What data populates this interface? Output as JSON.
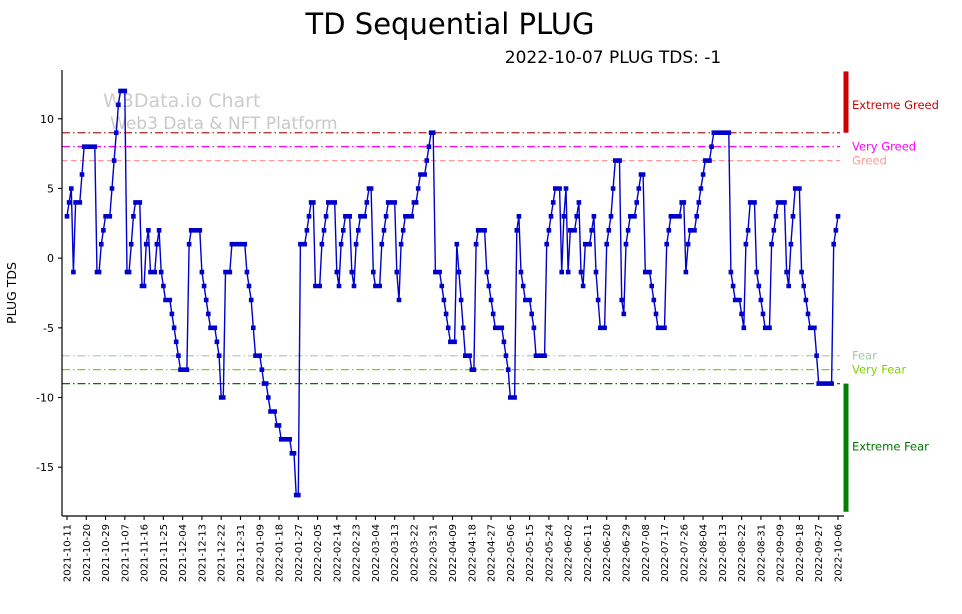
{
  "title": "TD Sequential PLUG",
  "subtitle": "2022-10-07 PLUG TDS: -1",
  "watermark": {
    "line1": "W3Data.io Chart",
    "line2": "Web3 Data & NFT Platform"
  },
  "chart_data": {
    "type": "line",
    "title": "TD Sequential PLUG",
    "subtitle": "2022-10-07 PLUG TDS: -1",
    "xlabel": "",
    "ylabel": "PLUG TDS",
    "ylim": [
      -18.5,
      13.5
    ],
    "yticks": [
      -15,
      -10,
      -5,
      0,
      5,
      10
    ],
    "grid": false,
    "legend": null,
    "xtick_interval_days": 9,
    "xtick_labels": [
      "2021-10-11",
      "2021-10-20",
      "2021-10-29",
      "2021-11-07",
      "2021-11-16",
      "2021-11-25",
      "2021-12-04",
      "2021-12-13",
      "2021-12-22",
      "2021-12-31",
      "2022-01-09",
      "2022-01-18",
      "2022-01-27",
      "2022-02-05",
      "2022-02-14",
      "2022-02-23",
      "2022-03-04",
      "2022-03-13",
      "2022-03-22",
      "2022-03-31",
      "2022-04-09",
      "2022-04-18",
      "2022-04-27",
      "2022-05-06",
      "2022-05-15",
      "2022-05-24",
      "2022-06-02",
      "2022-06-11",
      "2022-06-20",
      "2022-06-29",
      "2022-07-08",
      "2022-07-17",
      "2022-07-26",
      "2022-08-04",
      "2022-08-13",
      "2022-08-22",
      "2022-08-31",
      "2022-09-09",
      "2022-09-18",
      "2022-09-27",
      "2022-10-06"
    ],
    "series": [
      {
        "name": "PLUG TDS",
        "color": "#0000cd",
        "marker": "square",
        "start_date": "2021-10-11",
        "values": [
          3,
          4,
          5,
          -1,
          4,
          4,
          4,
          6,
          8,
          8,
          8,
          8,
          8,
          8,
          -1,
          -1,
          1,
          2,
          3,
          3,
          3,
          5,
          7,
          9,
          11,
          12,
          12,
          12,
          -1,
          -1,
          1,
          3,
          4,
          4,
          4,
          -2,
          -2,
          1,
          2,
          -1,
          -1,
          -1,
          1,
          2,
          -1,
          -2,
          -3,
          -3,
          -3,
          -4,
          -5,
          -6,
          -7,
          -8,
          -8,
          -8,
          -8,
          1,
          2,
          2,
          2,
          2,
          2,
          -1,
          -2,
          -3,
          -4,
          -5,
          -5,
          -5,
          -6,
          -7,
          -10,
          -10,
          -1,
          -1,
          -1,
          1,
          1,
          1,
          1,
          1,
          1,
          1,
          -1,
          -2,
          -3,
          -5,
          -7,
          -7,
          -7,
          -8,
          -9,
          -9,
          -10,
          -11,
          -11,
          -11,
          -12,
          -12,
          -13,
          -13,
          -13,
          -13,
          -13,
          -14,
          -14,
          -17,
          -17,
          1,
          1,
          1,
          2,
          3,
          4,
          4,
          -2,
          -2,
          -2,
          1,
          2,
          3,
          4,
          4,
          4,
          4,
          -1,
          -2,
          1,
          2,
          3,
          3,
          3,
          -1,
          -2,
          1,
          2,
          3,
          3,
          3,
          4,
          5,
          5,
          -1,
          -2,
          -2,
          -2,
          1,
          2,
          3,
          4,
          4,
          4,
          4,
          -1,
          -3,
          1,
          2,
          3,
          3,
          3,
          3,
          4,
          4,
          5,
          6,
          6,
          6,
          7,
          8,
          9,
          9,
          -1,
          -1,
          -1,
          -2,
          -3,
          -4,
          -5,
          -6,
          -6,
          -6,
          1,
          -1,
          -3,
          -5,
          -7,
          -7,
          -7,
          -8,
          -8,
          1,
          2,
          2,
          2,
          2,
          -1,
          -2,
          -3,
          -4,
          -5,
          -5,
          -5,
          -5,
          -6,
          -7,
          -8,
          -10,
          -10,
          -10,
          2,
          3,
          -1,
          -2,
          -3,
          -3,
          -3,
          -4,
          -5,
          -7,
          -7,
          -7,
          -7,
          -7,
          1,
          2,
          3,
          4,
          5,
          5,
          5,
          -1,
          3,
          5,
          -1,
          2,
          2,
          2,
          3,
          4,
          -1,
          -2,
          1,
          1,
          1,
          2,
          3,
          -1,
          -3,
          -5,
          -5,
          -5,
          1,
          2,
          3,
          5,
          7,
          7,
          7,
          -3,
          -4,
          1,
          2,
          3,
          3,
          3,
          4,
          5,
          6,
          6,
          -1,
          -1,
          -1,
          -2,
          -3,
          -4,
          -5,
          -5,
          -5,
          -5,
          1,
          2,
          3,
          3,
          3,
          3,
          3,
          4,
          4,
          -1,
          1,
          2,
          2,
          2,
          3,
          4,
          5,
          6,
          7,
          7,
          7,
          8,
          9,
          9,
          9,
          9,
          9,
          9,
          9,
          9,
          -1,
          -2,
          -3,
          -3,
          -3,
          -4,
          -5,
          1,
          2,
          4,
          4,
          4,
          -1,
          -2,
          -3,
          -4,
          -5,
          -5,
          -5,
          1,
          2,
          3,
          4,
          4,
          4,
          4,
          -1,
          -2,
          1,
          3,
          5,
          5,
          5,
          -1,
          -2,
          -3,
          -4,
          -5,
          -5,
          -5,
          -7,
          -9,
          -9,
          -9,
          -9,
          -9,
          -9,
          -9,
          1,
          2,
          3
        ]
      }
    ],
    "thresholds": [
      {
        "label": "Extreme Greed",
        "value": 9,
        "color": "#b22222",
        "label_color": "#cc0000",
        "line_style": "dashdot",
        "label_value": 11
      },
      {
        "label": "Very Greed",
        "value": 8,
        "color": "#ff00ff",
        "label_color": "#ff00ff",
        "line_style": "dashdot",
        "label_value": 8
      },
      {
        "label": "Greed",
        "value": 7,
        "color": "#ff9999",
        "label_color": "#ff9999",
        "line_style": "dashed",
        "label_value": 7
      },
      {
        "label": "Fear",
        "value": -7,
        "color": "#aecfae",
        "label_color": "#a8c8a8",
        "line_style": "dashdot",
        "label_value": -7
      },
      {
        "label": "Very Fear",
        "value": -8,
        "color": "#7fd400",
        "label_color": "#7fd400",
        "line_style": "dashdot",
        "label_value": -8
      },
      {
        "label": "Extreme Fear",
        "value": -9,
        "color": "#007700",
        "label_color": "#007700",
        "line_style": "dashdot",
        "label_value": -13.5
      }
    ],
    "side_bars": [
      {
        "color": "#cc0000",
        "from": 13.4,
        "to": 9
      },
      {
        "color": "#008000",
        "from": -9,
        "to": -18.2
      }
    ]
  }
}
